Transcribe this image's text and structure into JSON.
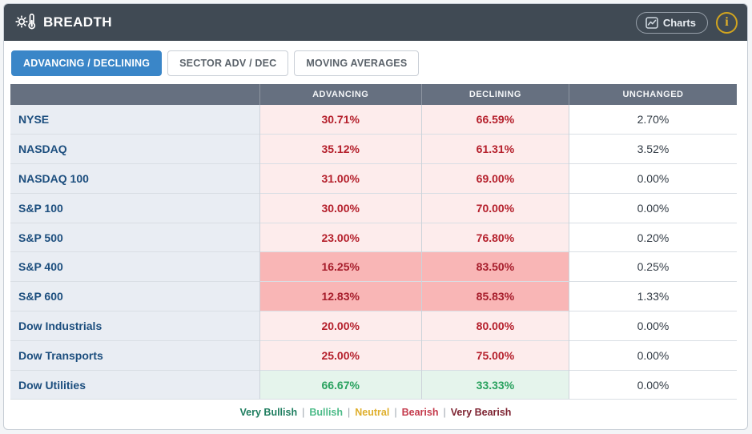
{
  "header": {
    "title": "BREADTH",
    "charts_button_label": "Charts",
    "info_label": "i"
  },
  "tabs": [
    {
      "label": "ADVANCING / DECLINING",
      "active": true
    },
    {
      "label": "SECTOR ADV / DEC",
      "active": false
    },
    {
      "label": "MOVING AVERAGES",
      "active": false
    }
  ],
  "table": {
    "columns": [
      "",
      "ADVANCING",
      "DECLINING",
      "UNCHANGED"
    ],
    "rows": [
      {
        "label": "NYSE",
        "advancing": "30.71%",
        "declining": "66.59%",
        "unchanged": "2.70%",
        "category": "bearish"
      },
      {
        "label": "NASDAQ",
        "advancing": "35.12%",
        "declining": "61.31%",
        "unchanged": "3.52%",
        "category": "bearish"
      },
      {
        "label": "NASDAQ 100",
        "advancing": "31.00%",
        "declining": "69.00%",
        "unchanged": "0.00%",
        "category": "bearish"
      },
      {
        "label": "S&P 100",
        "advancing": "30.00%",
        "declining": "70.00%",
        "unchanged": "0.00%",
        "category": "bearish"
      },
      {
        "label": "S&P 500",
        "advancing": "23.00%",
        "declining": "76.80%",
        "unchanged": "0.20%",
        "category": "bearish"
      },
      {
        "label": "S&P 400",
        "advancing": "16.25%",
        "declining": "83.50%",
        "unchanged": "0.25%",
        "category": "very_bearish"
      },
      {
        "label": "S&P 600",
        "advancing": "12.83%",
        "declining": "85.83%",
        "unchanged": "1.33%",
        "category": "very_bearish"
      },
      {
        "label": "Dow Industrials",
        "advancing": "20.00%",
        "declining": "80.00%",
        "unchanged": "0.00%",
        "category": "bearish"
      },
      {
        "label": "Dow Transports",
        "advancing": "25.00%",
        "declining": "75.00%",
        "unchanged": "0.00%",
        "category": "bearish"
      },
      {
        "label": "Dow Utilities",
        "advancing": "66.67%",
        "declining": "33.33%",
        "unchanged": "0.00%",
        "category": "bullish"
      }
    ]
  },
  "legend": {
    "separator": "|",
    "items": [
      {
        "label": "Very Bullish",
        "color": "#1e7d5f"
      },
      {
        "label": "Bullish",
        "color": "#4cbb88"
      },
      {
        "label": "Neutral",
        "color": "#dfaf2c"
      },
      {
        "label": "Bearish",
        "color": "#c43a4b"
      },
      {
        "label": "Very Bearish",
        "color": "#7d2331"
      }
    ]
  },
  "colors": {
    "header_bg": "#404a54",
    "active_tab": "#3a86c8",
    "thead_bg": "#667080",
    "bearish_bg": "#fdecec",
    "very_bearish_bg": "#f9b6b6",
    "bullish_bg": "#e5f4ec",
    "value_red": "#b5202c",
    "value_green": "#2aa25f",
    "label_navy": "#1c4e7e",
    "info_gold": "#d2a51f"
  }
}
